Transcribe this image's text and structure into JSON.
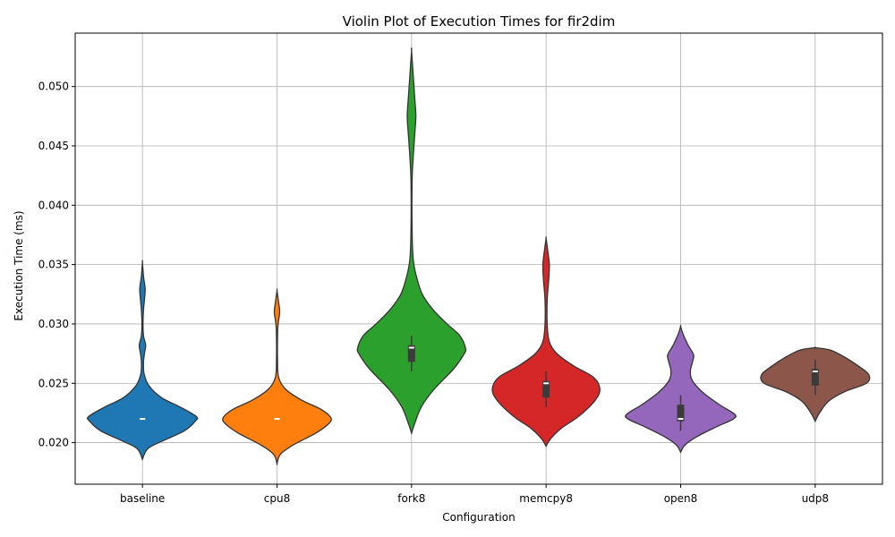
{
  "chart_data": {
    "type": "violin",
    "title": "Violin Plot of Execution Times for fir2dim",
    "xlabel": "Configuration",
    "ylabel": "Execution Time (ms)",
    "ylim": [
      0.0165,
      0.0545
    ],
    "yticks": [
      "0.020",
      "0.025",
      "0.030",
      "0.035",
      "0.040",
      "0.045",
      "0.050"
    ],
    "grid": true,
    "categories": [
      "baseline",
      "cpu8",
      "fork8",
      "memcpy8",
      "open8",
      "udp8"
    ],
    "series": [
      {
        "category": "baseline",
        "color": "#1f77b4",
        "median": 0.022,
        "q1": 0.022,
        "q3": 0.022,
        "whisker_low": 0.022,
        "whisker_high": 0.022,
        "profile": [
          [
            0.0186,
            0
          ],
          [
            0.0195,
            0.1
          ],
          [
            0.0202,
            0.4
          ],
          [
            0.021,
            0.78
          ],
          [
            0.0218,
            0.98
          ],
          [
            0.0222,
            1.0
          ],
          [
            0.023,
            0.7
          ],
          [
            0.0238,
            0.35
          ],
          [
            0.0248,
            0.12
          ],
          [
            0.0258,
            0.03
          ],
          [
            0.0268,
            0.02
          ],
          [
            0.0276,
            0.04
          ],
          [
            0.0282,
            0.06
          ],
          [
            0.029,
            0.02
          ],
          [
            0.03,
            0.01
          ],
          [
            0.0312,
            0.02
          ],
          [
            0.0322,
            0.04
          ],
          [
            0.033,
            0.05
          ],
          [
            0.034,
            0.02
          ],
          [
            0.0352,
            0
          ]
        ]
      },
      {
        "category": "cpu8",
        "color": "#ff7f0e",
        "median": 0.022,
        "q1": 0.022,
        "q3": 0.022,
        "whisker_low": 0.022,
        "whisker_high": 0.022,
        "profile": [
          [
            0.0182,
            0
          ],
          [
            0.019,
            0.06
          ],
          [
            0.0198,
            0.3
          ],
          [
            0.0208,
            0.72
          ],
          [
            0.0216,
            0.96
          ],
          [
            0.0221,
            1.0
          ],
          [
            0.0228,
            0.82
          ],
          [
            0.0236,
            0.45
          ],
          [
            0.0245,
            0.16
          ],
          [
            0.0255,
            0.03
          ],
          [
            0.027,
            0.01
          ],
          [
            0.029,
            0.01
          ],
          [
            0.03,
            0.02
          ],
          [
            0.031,
            0.05
          ],
          [
            0.0318,
            0.03
          ],
          [
            0.0328,
            0
          ]
        ]
      },
      {
        "category": "fork8",
        "color": "#2ca02c",
        "median": 0.028,
        "q1": 0.0268,
        "q3": 0.0282,
        "whisker_low": 0.026,
        "whisker_high": 0.029,
        "profile": [
          [
            0.0208,
            0
          ],
          [
            0.0215,
            0.05
          ],
          [
            0.023,
            0.18
          ],
          [
            0.0245,
            0.42
          ],
          [
            0.0262,
            0.78
          ],
          [
            0.0275,
            0.98
          ],
          [
            0.028,
            1.0
          ],
          [
            0.029,
            0.9
          ],
          [
            0.03,
            0.66
          ],
          [
            0.0312,
            0.4
          ],
          [
            0.0325,
            0.2
          ],
          [
            0.034,
            0.09
          ],
          [
            0.0355,
            0.03
          ],
          [
            0.038,
            0.01
          ],
          [
            0.042,
            0.01
          ],
          [
            0.044,
            0.03
          ],
          [
            0.046,
            0.06
          ],
          [
            0.0475,
            0.08
          ],
          [
            0.049,
            0.06
          ],
          [
            0.051,
            0.03
          ],
          [
            0.053,
            0
          ]
        ]
      },
      {
        "category": "memcpy8",
        "color": "#d62728",
        "median": 0.025,
        "q1": 0.0238,
        "q3": 0.0252,
        "whisker_low": 0.023,
        "whisker_high": 0.026,
        "profile": [
          [
            0.0197,
            0
          ],
          [
            0.0203,
            0.08
          ],
          [
            0.0212,
            0.28
          ],
          [
            0.0222,
            0.6
          ],
          [
            0.0235,
            0.9
          ],
          [
            0.0245,
            1.0
          ],
          [
            0.0255,
            0.88
          ],
          [
            0.0265,
            0.5
          ],
          [
            0.0275,
            0.2
          ],
          [
            0.0285,
            0.06
          ],
          [
            0.03,
            0.02
          ],
          [
            0.032,
            0.02
          ],
          [
            0.0338,
            0.05
          ],
          [
            0.035,
            0.06
          ],
          [
            0.0362,
            0.03
          ],
          [
            0.0372,
            0
          ]
        ]
      },
      {
        "category": "open8",
        "color": "#9467bd",
        "median": 0.022,
        "q1": 0.0218,
        "q3": 0.0232,
        "whisker_low": 0.021,
        "whisker_high": 0.024,
        "profile": [
          [
            0.0192,
            0
          ],
          [
            0.0198,
            0.08
          ],
          [
            0.0205,
            0.3
          ],
          [
            0.0213,
            0.65
          ],
          [
            0.022,
            0.98
          ],
          [
            0.0224,
            1.0
          ],
          [
            0.0232,
            0.72
          ],
          [
            0.0242,
            0.42
          ],
          [
            0.0252,
            0.22
          ],
          [
            0.026,
            0.18
          ],
          [
            0.0268,
            0.22
          ],
          [
            0.0274,
            0.24
          ],
          [
            0.0282,
            0.14
          ],
          [
            0.0292,
            0.04
          ],
          [
            0.0298,
            0
          ]
        ]
      },
      {
        "category": "udp8",
        "color": "#8c564b",
        "median": 0.026,
        "q1": 0.0248,
        "q3": 0.0262,
        "whisker_low": 0.024,
        "whisker_high": 0.027,
        "profile": [
          [
            0.0218,
            0
          ],
          [
            0.0225,
            0.08
          ],
          [
            0.0235,
            0.25
          ],
          [
            0.0243,
            0.55
          ],
          [
            0.025,
            0.95
          ],
          [
            0.0257,
            1.0
          ],
          [
            0.0264,
            0.82
          ],
          [
            0.0272,
            0.55
          ],
          [
            0.0278,
            0.28
          ],
          [
            0.028,
            0
          ]
        ]
      }
    ]
  }
}
